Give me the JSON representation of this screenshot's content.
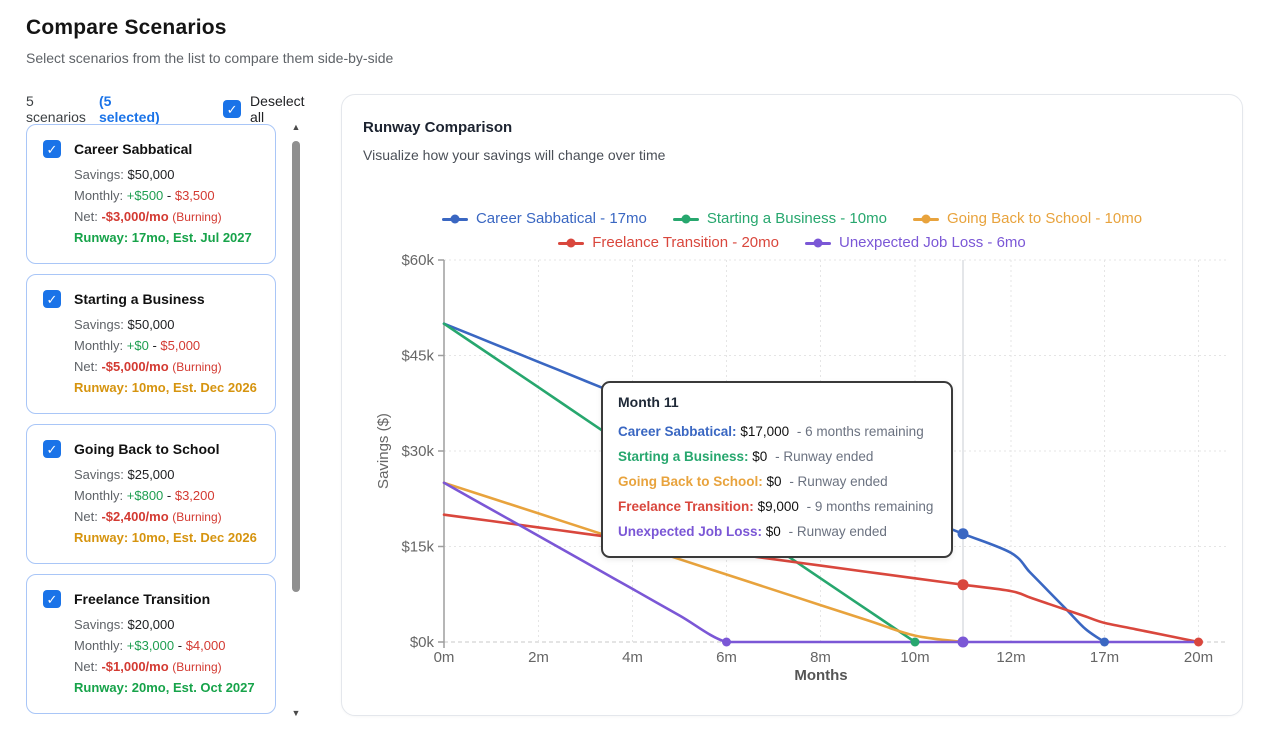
{
  "page": {
    "title": "Compare Scenarios",
    "subtitle": "Select scenarios from the list to compare them side-by-side"
  },
  "toolbar": {
    "count_label": "5 scenarios",
    "selected_label": "(5 selected)",
    "deselect_label": "Deselect all"
  },
  "labels": {
    "savings": "Savings:",
    "monthly": "Monthly:",
    "net": "Net:",
    "dash": " - "
  },
  "scenarios": [
    {
      "name": "Career Sabbatical",
      "checked": true,
      "savings": "$50,000",
      "income": "+$500",
      "expense": "$3,500",
      "net": "-$3,000/mo",
      "net_note": "(Burning)",
      "runway": "Runway: 17mo, Est. Jul 2027",
      "runway_status": "good"
    },
    {
      "name": "Starting a Business",
      "checked": true,
      "savings": "$50,000",
      "income": "+$0",
      "expense": "$5,000",
      "net": "-$5,000/mo",
      "net_note": "(Burning)",
      "runway": "Runway: 10mo, Est. Dec 2026",
      "runway_status": "warn"
    },
    {
      "name": "Going Back to School",
      "checked": true,
      "savings": "$25,000",
      "income": "+$800",
      "expense": "$3,200",
      "net": "-$2,400/mo",
      "net_note": "(Burning)",
      "runway": "Runway: 10mo, Est. Dec 2026",
      "runway_status": "warn"
    },
    {
      "name": "Freelance Transition",
      "checked": true,
      "savings": "$20,000",
      "income": "+$3,000",
      "expense": "$4,000",
      "net": "-$1,000/mo",
      "net_note": "(Burning)",
      "runway": "Runway: 20mo, Est. Oct 2027",
      "runway_status": "good"
    }
  ],
  "chart_data": {
    "type": "line",
    "title": "Runway Comparison",
    "subtitle": "Visualize how your savings will change over time",
    "xlabel": "Months",
    "ylabel": "Savings ($)",
    "x_ticks": [
      "0m",
      "2m",
      "4m",
      "6m",
      "8m",
      "10m",
      "12m",
      "17m",
      "20m"
    ],
    "x_tick_months": [
      0,
      2,
      4,
      6,
      8,
      10,
      12,
      17,
      20
    ],
    "y_ticks": [
      "$0k",
      "$15k",
      "$30k",
      "$45k",
      "$60k"
    ],
    "y_tick_values": [
      0,
      15000,
      30000,
      45000,
      60000
    ],
    "ylim": [
      0,
      60000
    ],
    "grid": true,
    "legend_position": "top",
    "series": [
      {
        "name": "Career Sabbatical - 17mo",
        "color": "#3a67c2",
        "end_dot_month": 17,
        "points": [
          [
            0,
            50000
          ],
          [
            1,
            47000
          ],
          [
            2,
            44000
          ],
          [
            3,
            41000
          ],
          [
            4,
            38000
          ],
          [
            5,
            35000
          ],
          [
            6,
            32000
          ],
          [
            7,
            29000
          ],
          [
            8,
            26000
          ],
          [
            9,
            23000
          ],
          [
            10,
            20000
          ],
          [
            11,
            17000
          ],
          [
            12,
            14000
          ],
          [
            13,
            11000
          ],
          [
            14,
            8000
          ],
          [
            15,
            5000
          ],
          [
            16,
            2000
          ],
          [
            17,
            0
          ]
        ]
      },
      {
        "name": "Starting a Business - 10mo",
        "color": "#27a76e",
        "end_dot_month": 10,
        "points": [
          [
            0,
            50000
          ],
          [
            1,
            45000
          ],
          [
            2,
            40000
          ],
          [
            3,
            35000
          ],
          [
            4,
            30000
          ],
          [
            5,
            25000
          ],
          [
            6,
            20000
          ],
          [
            7,
            15000
          ],
          [
            8,
            10000
          ],
          [
            9,
            5000
          ],
          [
            10,
            0
          ]
        ]
      },
      {
        "name": "Going Back to School - 10mo",
        "color": "#e8a33d",
        "end_dot_month": 11,
        "points": [
          [
            0,
            25000
          ],
          [
            1,
            22600
          ],
          [
            2,
            20200
          ],
          [
            3,
            17800
          ],
          [
            4,
            15400
          ],
          [
            5,
            13000
          ],
          [
            6,
            10600
          ],
          [
            7,
            8200
          ],
          [
            8,
            5800
          ],
          [
            9,
            3400
          ],
          [
            10,
            1000
          ],
          [
            11,
            0
          ]
        ]
      },
      {
        "name": "Freelance Transition - 20mo",
        "color": "#d9473d",
        "end_dot_month": 20,
        "points": [
          [
            0,
            20000
          ],
          [
            1,
            19000
          ],
          [
            2,
            18000
          ],
          [
            3,
            17000
          ],
          [
            4,
            16000
          ],
          [
            5,
            15000
          ],
          [
            6,
            14000
          ],
          [
            7,
            13000
          ],
          [
            8,
            12000
          ],
          [
            9,
            11000
          ],
          [
            10,
            10000
          ],
          [
            11,
            9000
          ],
          [
            12,
            8000
          ],
          [
            13,
            7000
          ],
          [
            14,
            6000
          ],
          [
            15,
            5000
          ],
          [
            16,
            4000
          ],
          [
            17,
            3000
          ],
          [
            18,
            2000
          ],
          [
            19,
            1000
          ],
          [
            20,
            0
          ]
        ]
      },
      {
        "name": "Unexpected Job Loss - 6mo",
        "color": "#7b57d6",
        "end_dot_month": 6,
        "points": [
          [
            0,
            25000
          ],
          [
            1,
            20833
          ],
          [
            2,
            16667
          ],
          [
            3,
            12500
          ],
          [
            4,
            8333
          ],
          [
            5,
            4167
          ],
          [
            6,
            0
          ],
          [
            7,
            0
          ],
          [
            8,
            0
          ],
          [
            9,
            0
          ],
          [
            10,
            0
          ],
          [
            11,
            0
          ],
          [
            12,
            0
          ],
          [
            13,
            0
          ],
          [
            14,
            0
          ],
          [
            15,
            0
          ],
          [
            16,
            0
          ],
          [
            17,
            0
          ],
          [
            18,
            0
          ],
          [
            19,
            0
          ],
          [
            20,
            0
          ]
        ]
      }
    ],
    "hover": {
      "month": 11,
      "dots": [
        {
          "series": 0,
          "value": 17000
        },
        {
          "series": 3,
          "value": 9000
        },
        {
          "series": 4,
          "value": 0
        }
      ]
    }
  },
  "tooltip": {
    "title": "Month 11",
    "rows": [
      {
        "label": "Career Sabbatical:",
        "value": "$17,000",
        "note": "- 6 months remaining",
        "color": "#3a67c2"
      },
      {
        "label": "Starting a Business:",
        "value": "$0",
        "note": "- Runway ended",
        "color": "#27a76e"
      },
      {
        "label": "Going Back to School:",
        "value": "$0",
        "note": "- Runway ended",
        "color": "#e8a33d"
      },
      {
        "label": "Freelance Transition:",
        "value": "$9,000",
        "note": "- 9 months remaining",
        "color": "#d9473d"
      },
      {
        "label": "Unexpected Job Loss:",
        "value": "$0",
        "note": "- Runway ended",
        "color": "#7b57d6"
      }
    ]
  },
  "colors": {
    "accent": "#1a73e8",
    "card_border": "#a9c6f7",
    "income_green": "#1e9e50",
    "expense_red": "#d33a32",
    "runway_good": "#17a34a",
    "runway_warn": "#d6940f",
    "grid": "#e5e5e5",
    "axis": "#9e9e9e"
  }
}
